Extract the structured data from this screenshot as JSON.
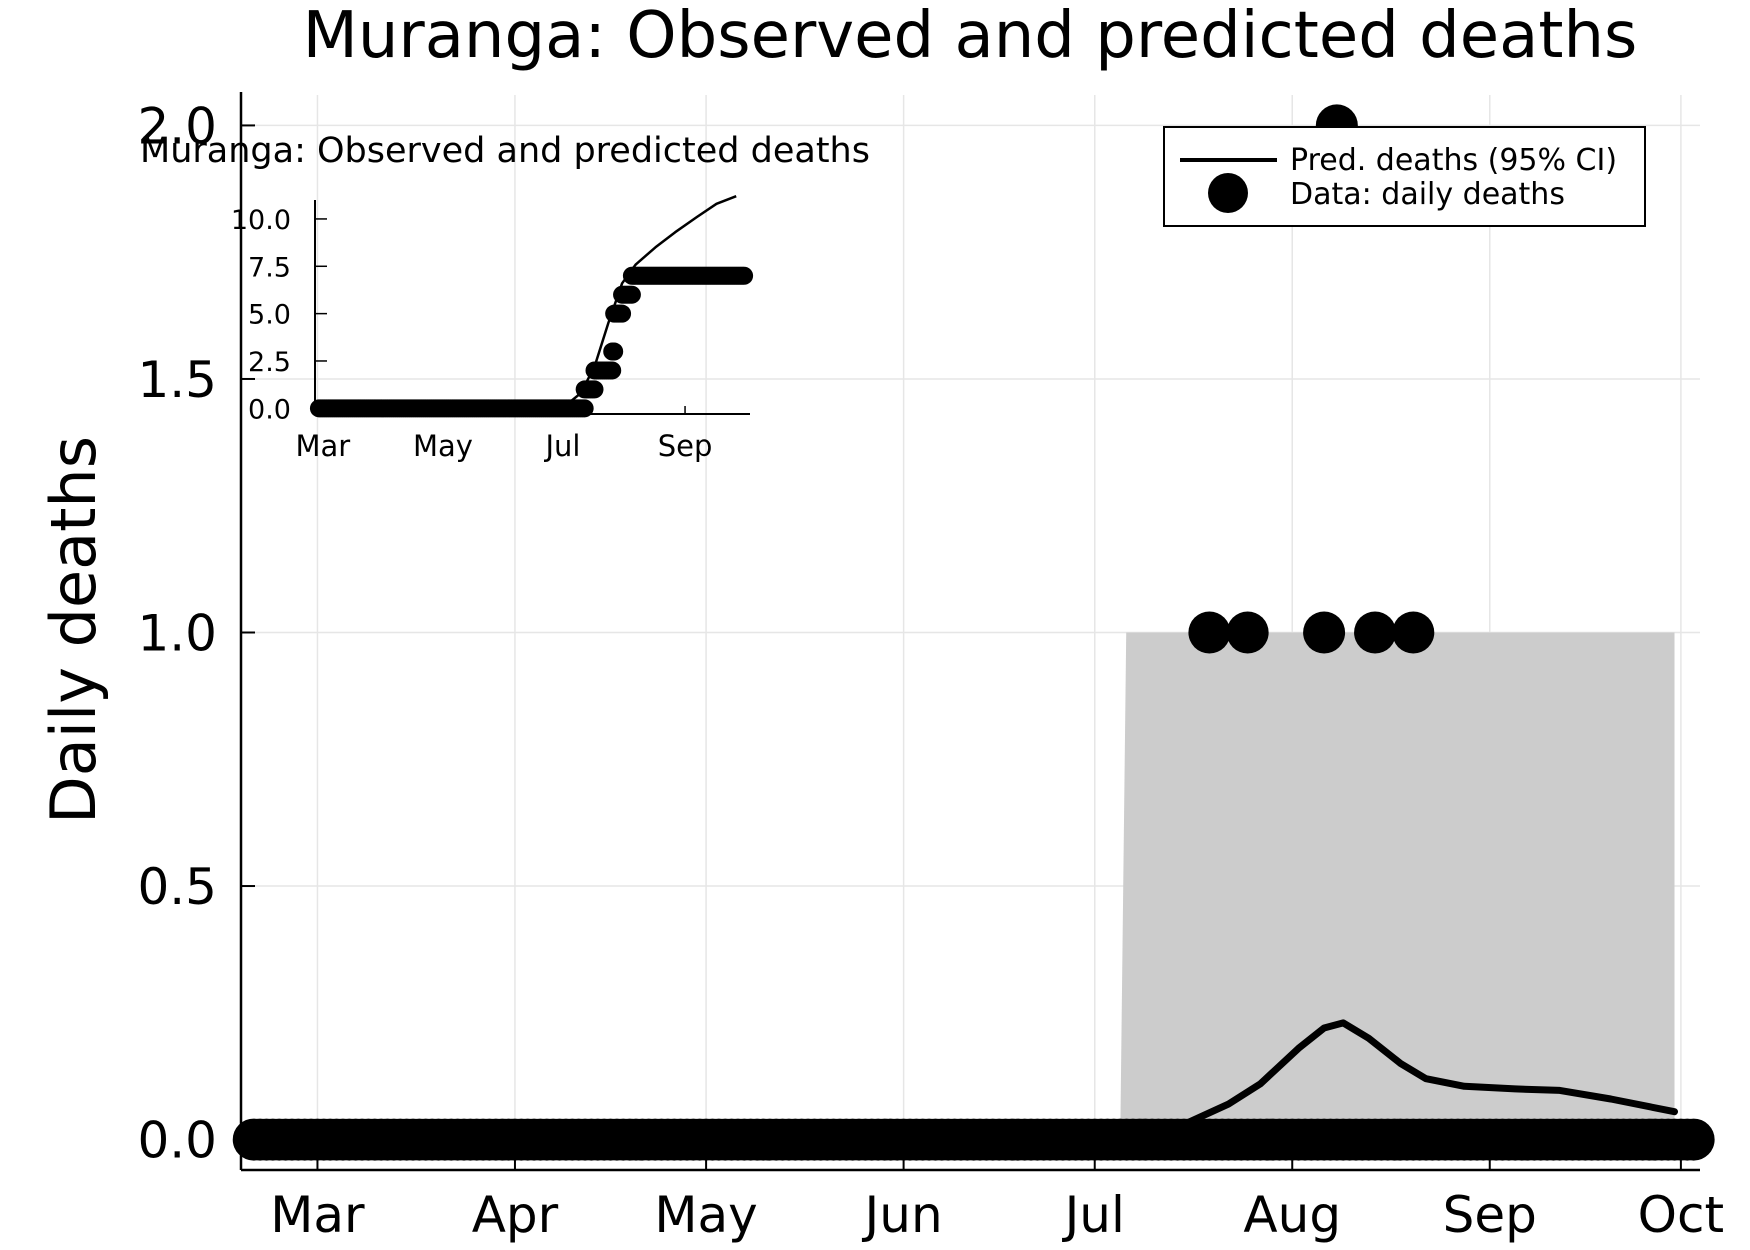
{
  "chart_data": [
    {
      "id": "main",
      "type": "line",
      "title": "Muranga: Observed and predicted deaths",
      "xlabel": "",
      "ylabel": "Daily deaths",
      "x_axis_type": "date",
      "xlim": [
        "2020-02-18",
        "2020-10-04"
      ],
      "ylim": [
        -0.06,
        2.06
      ],
      "x_ticks": [
        {
          "date": "2020-03-01",
          "label": "Mar"
        },
        {
          "date": "2020-04-01",
          "label": "Apr"
        },
        {
          "date": "2020-05-01",
          "label": "May"
        },
        {
          "date": "2020-06-01",
          "label": "Jun"
        },
        {
          "date": "2020-07-01",
          "label": "Jul"
        },
        {
          "date": "2020-08-01",
          "label": "Aug"
        },
        {
          "date": "2020-09-01",
          "label": "Sep"
        },
        {
          "date": "2020-10-01",
          "label": "Oct"
        }
      ],
      "y_ticks": [
        {
          "value": 0.0,
          "label": "0.0"
        },
        {
          "value": 0.5,
          "label": "0.5"
        },
        {
          "value": 1.0,
          "label": "1.0"
        },
        {
          "value": 1.5,
          "label": "1.5"
        },
        {
          "value": 2.0,
          "label": "2.0"
        }
      ],
      "grid": true,
      "legend_position": "top-right",
      "legend": [
        {
          "label": "Pred. deaths (95% CI)",
          "marker": "line"
        },
        {
          "label": "Data: daily deaths",
          "marker": "circle"
        }
      ],
      "series": [
        {
          "name": "Pred. deaths (95% CI)",
          "kind": "line",
          "color": "#000000",
          "points": [
            {
              "x": "2020-07-08",
              "y": 0.0
            },
            {
              "x": "2020-07-15",
              "y": 0.03
            },
            {
              "x": "2020-07-22",
              "y": 0.07
            },
            {
              "x": "2020-07-27",
              "y": 0.11
            },
            {
              "x": "2020-08-02",
              "y": 0.18
            },
            {
              "x": "2020-08-06",
              "y": 0.22
            },
            {
              "x": "2020-08-09",
              "y": 0.23
            },
            {
              "x": "2020-08-13",
              "y": 0.2
            },
            {
              "x": "2020-08-18",
              "y": 0.15
            },
            {
              "x": "2020-08-22",
              "y": 0.12
            },
            {
              "x": "2020-08-28",
              "y": 0.105
            },
            {
              "x": "2020-09-05",
              "y": 0.1
            },
            {
              "x": "2020-09-12",
              "y": 0.097
            },
            {
              "x": "2020-09-20",
              "y": 0.08
            },
            {
              "x": "2020-09-30",
              "y": 0.055
            }
          ]
        },
        {
          "name": "95% CI band",
          "kind": "band",
          "color": "#cccccc",
          "x_start": "2020-07-05",
          "x_end": "2020-09-30",
          "lower": 0.0,
          "upper": 1.0
        },
        {
          "name": "Data: daily deaths",
          "kind": "scatter",
          "color": "#000000",
          "zero_range": [
            "2020-02-20",
            "2020-10-03"
          ],
          "points": [
            {
              "x": "2020-07-19",
              "y": 1
            },
            {
              "x": "2020-07-25",
              "y": 1
            },
            {
              "x": "2020-08-06",
              "y": 1
            },
            {
              "x": "2020-08-08",
              "y": 2
            },
            {
              "x": "2020-08-14",
              "y": 1
            },
            {
              "x": "2020-08-20",
              "y": 1
            }
          ]
        }
      ]
    },
    {
      "id": "inset",
      "type": "line",
      "title": "Muranga: Observed and predicted deaths",
      "xlabel": "",
      "ylabel": "",
      "x_axis_type": "date",
      "xlim": [
        "2020-02-26",
        "2020-10-04"
      ],
      "ylim": [
        -0.3,
        11.0
      ],
      "x_ticks": [
        {
          "date": "2020-03-01",
          "label": "Mar"
        },
        {
          "date": "2020-05-01",
          "label": "May"
        },
        {
          "date": "2020-07-01",
          "label": "Jul"
        },
        {
          "date": "2020-09-01",
          "label": "Sep"
        }
      ],
      "y_ticks": [
        {
          "value": 0.0,
          "label": "0.0"
        },
        {
          "value": 2.5,
          "label": "2.5"
        },
        {
          "value": 5.0,
          "label": "5.0"
        },
        {
          "value": 7.5,
          "label": "7.5"
        },
        {
          "value": 10.0,
          "label": "10.0"
        }
      ],
      "grid": false,
      "series": [
        {
          "name": "Predicted cumulative deaths",
          "kind": "line",
          "color": "#000000",
          "points": [
            {
              "x": "2020-02-28",
              "y": 0.0
            },
            {
              "x": "2020-06-25",
              "y": 0.02
            },
            {
              "x": "2020-07-03",
              "y": 0.2
            },
            {
              "x": "2020-07-10",
              "y": 0.8
            },
            {
              "x": "2020-07-17",
              "y": 2.2
            },
            {
              "x": "2020-07-24",
              "y": 4.5
            },
            {
              "x": "2020-07-31",
              "y": 6.6
            },
            {
              "x": "2020-08-07",
              "y": 7.6
            },
            {
              "x": "2020-08-17",
              "y": 8.5
            },
            {
              "x": "2020-08-27",
              "y": 9.3
            },
            {
              "x": "2020-09-07",
              "y": 10.1
            },
            {
              "x": "2020-09-17",
              "y": 10.8
            },
            {
              "x": "2020-09-27",
              "y": 11.2
            }
          ]
        },
        {
          "name": "Cumulative deaths data",
          "kind": "scatter",
          "color": "#000000",
          "steps": [
            {
              "from": "2020-02-28",
              "to": "2020-07-12",
              "y": 0
            },
            {
              "from": "2020-07-12",
              "to": "2020-07-17",
              "y": 1
            },
            {
              "from": "2020-07-17",
              "to": "2020-07-26",
              "y": 2
            },
            {
              "from": "2020-07-26",
              "to": "2020-07-27",
              "y": 3
            },
            {
              "from": "2020-07-27",
              "to": "2020-07-31",
              "y": 5
            },
            {
              "from": "2020-07-31",
              "to": "2020-08-05",
              "y": 6
            },
            {
              "from": "2020-08-05",
              "to": "2020-10-01",
              "y": 7
            }
          ]
        }
      ]
    }
  ]
}
